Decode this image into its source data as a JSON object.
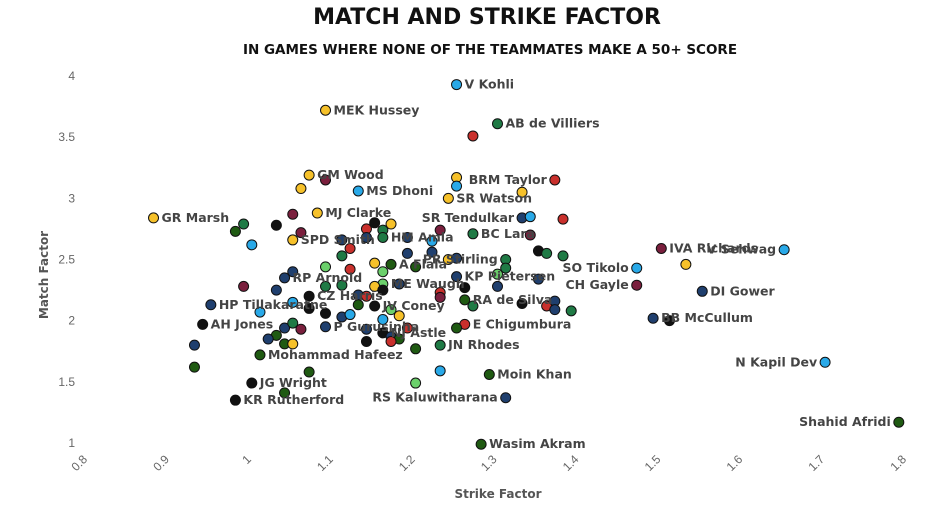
{
  "colors": {
    "black": "#111111",
    "navy": "#1f3f6e",
    "sky": "#29a9e8",
    "green": "#1f7a45",
    "dkgreen": "#1f5a12",
    "yellow": "#f6c12a",
    "red": "#c9302c",
    "purple": "#7a1f3d",
    "lime": "#6bd06b"
  },
  "chart_data": {
    "type": "scatter",
    "title": "MATCH AND STRIKE FACTOR",
    "subtitle": "IN GAMES WHERE NONE OF THE TEAMMATES MAKE A 50+ SCORE",
    "xlabel": "Strike Factor",
    "ylabel": "Match Factor",
    "xlim": [
      0.8,
      1.8
    ],
    "ylim": [
      1,
      4
    ],
    "xticks": [
      "0.8",
      "0.9",
      "1",
      "1.1",
      "1.2",
      "1.3",
      "1.4",
      "1.5",
      "1.6",
      "1.7",
      "1.8"
    ],
    "yticks": [
      "1",
      "1.5",
      "2",
      "2.5",
      "3",
      "3.5",
      "4"
    ],
    "grid": false,
    "points": [
      {
        "label": "V Kohli",
        "x": 1.25,
        "y": 3.93,
        "color": "sky"
      },
      {
        "label": "MEK Hussey",
        "x": 1.09,
        "y": 3.72,
        "color": "yellow"
      },
      {
        "label": "AB de Villiers",
        "x": 1.3,
        "y": 3.61,
        "color": "green"
      },
      {
        "label": "",
        "x": 1.27,
        "y": 3.51,
        "color": "red"
      },
      {
        "label": "GM Wood",
        "x": 1.07,
        "y": 3.19,
        "color": "yellow"
      },
      {
        "label": "",
        "x": 1.09,
        "y": 3.15,
        "color": "purple"
      },
      {
        "label": "BRM Taylor",
        "x": 1.37,
        "y": 3.15,
        "color": "red"
      },
      {
        "label": "",
        "x": 1.25,
        "y": 3.17,
        "color": "yellow"
      },
      {
        "label": "MS Dhoni",
        "x": 1.13,
        "y": 3.06,
        "color": "sky"
      },
      {
        "label": "",
        "x": 1.06,
        "y": 3.08,
        "color": "yellow"
      },
      {
        "label": "",
        "x": 1.25,
        "y": 3.1,
        "color": "sky"
      },
      {
        "label": "SR Watson",
        "x": 1.24,
        "y": 3.0,
        "color": "yellow"
      },
      {
        "label": "",
        "x": 1.33,
        "y": 3.05,
        "color": "yellow"
      },
      {
        "label": "MJ Clarke",
        "x": 1.08,
        "y": 2.88,
        "color": "yellow"
      },
      {
        "label": "GR Marsh",
        "x": 0.88,
        "y": 2.84,
        "color": "yellow"
      },
      {
        "label": "",
        "x": 0.99,
        "y": 2.79,
        "color": "green"
      },
      {
        "label": "",
        "x": 0.98,
        "y": 2.73,
        "color": "dkgreen"
      },
      {
        "label": "",
        "x": 1.03,
        "y": 2.78,
        "color": "black"
      },
      {
        "label": "",
        "x": 1.05,
        "y": 2.87,
        "color": "purple"
      },
      {
        "label": "SR Tendulkar",
        "x": 1.33,
        "y": 2.84,
        "color": "navy"
      },
      {
        "label": "",
        "x": 1.34,
        "y": 2.85,
        "color": "sky"
      },
      {
        "label": "",
        "x": 1.38,
        "y": 2.83,
        "color": "red"
      },
      {
        "label": "",
        "x": 1.15,
        "y": 2.8,
        "color": "black"
      },
      {
        "label": "",
        "x": 1.17,
        "y": 2.79,
        "color": "yellow"
      },
      {
        "label": "",
        "x": 1.14,
        "y": 2.75,
        "color": "red"
      },
      {
        "label": "",
        "x": 1.16,
        "y": 2.74,
        "color": "green"
      },
      {
        "label": "SPD Smith",
        "x": 1.05,
        "y": 2.66,
        "color": "yellow"
      },
      {
        "label": "",
        "x": 1.06,
        "y": 2.72,
        "color": "purple"
      },
      {
        "label": "",
        "x": 1.0,
        "y": 2.62,
        "color": "sky"
      },
      {
        "label": "HM Amla",
        "x": 1.16,
        "y": 2.68,
        "color": "green"
      },
      {
        "label": "",
        "x": 1.11,
        "y": 2.66,
        "color": "navy"
      },
      {
        "label": "",
        "x": 1.14,
        "y": 2.68,
        "color": "navy"
      },
      {
        "label": "",
        "x": 1.19,
        "y": 2.68,
        "color": "navy"
      },
      {
        "label": "",
        "x": 1.22,
        "y": 2.65,
        "color": "sky"
      },
      {
        "label": "",
        "x": 1.23,
        "y": 2.74,
        "color": "purple"
      },
      {
        "label": "BC Lara",
        "x": 1.27,
        "y": 2.71,
        "color": "green"
      },
      {
        "label": "",
        "x": 1.34,
        "y": 2.7,
        "color": "purple"
      },
      {
        "label": "IVA Richards",
        "x": 1.5,
        "y": 2.59,
        "color": "purple"
      },
      {
        "label": "V Sehwag",
        "x": 1.65,
        "y": 2.58,
        "color": "sky"
      },
      {
        "label": "",
        "x": 1.12,
        "y": 2.59,
        "color": "red"
      },
      {
        "label": "",
        "x": 1.11,
        "y": 2.53,
        "color": "green"
      },
      {
        "label": "",
        "x": 1.19,
        "y": 2.55,
        "color": "navy"
      },
      {
        "label": "",
        "x": 1.22,
        "y": 2.56,
        "color": "navy"
      },
      {
        "label": "",
        "x": 1.35,
        "y": 2.57,
        "color": "black"
      },
      {
        "label": "",
        "x": 1.36,
        "y": 2.55,
        "color": "green"
      },
      {
        "label": "",
        "x": 1.38,
        "y": 2.53,
        "color": "green"
      },
      {
        "label": "PR Stirling",
        "x": 1.31,
        "y": 2.5,
        "color": "green"
      },
      {
        "label": "A Flala",
        "x": 1.17,
        "y": 2.46,
        "color": "dkgreen"
      },
      {
        "label": "",
        "x": 1.2,
        "y": 2.44,
        "color": "dkgreen"
      },
      {
        "label": "",
        "x": 1.15,
        "y": 2.47,
        "color": "yellow"
      },
      {
        "label": "",
        "x": 1.24,
        "y": 2.5,
        "color": "yellow"
      },
      {
        "label": "",
        "x": 1.25,
        "y": 2.51,
        "color": "navy"
      },
      {
        "label": "SO Tikolo",
        "x": 1.47,
        "y": 2.43,
        "color": "sky"
      },
      {
        "label": "",
        "x": 1.53,
        "y": 2.46,
        "color": "yellow"
      },
      {
        "label": "RP Arnold",
        "x": 1.04,
        "y": 2.35,
        "color": "navy"
      },
      {
        "label": "",
        "x": 1.05,
        "y": 2.4,
        "color": "navy"
      },
      {
        "label": "",
        "x": 1.09,
        "y": 2.44,
        "color": "lime"
      },
      {
        "label": "",
        "x": 1.12,
        "y": 2.42,
        "color": "red"
      },
      {
        "label": "",
        "x": 1.16,
        "y": 2.4,
        "color": "lime"
      },
      {
        "label": "",
        "x": 1.31,
        "y": 2.43,
        "color": "green"
      },
      {
        "label": "KP Pietersen",
        "x": 1.25,
        "y": 2.36,
        "color": "navy"
      },
      {
        "label": "",
        "x": 1.3,
        "y": 2.38,
        "color": "lime"
      },
      {
        "label": "",
        "x": 1.35,
        "y": 2.34,
        "color": "navy"
      },
      {
        "label": "CH Gayle",
        "x": 1.47,
        "y": 2.29,
        "color": "purple"
      },
      {
        "label": "DI Gower",
        "x": 1.55,
        "y": 2.24,
        "color": "navy"
      },
      {
        "label": "ME Waugh",
        "x": 1.16,
        "y": 2.3,
        "color": "lime"
      },
      {
        "label": "",
        "x": 1.18,
        "y": 2.3,
        "color": "navy"
      },
      {
        "label": "",
        "x": 1.09,
        "y": 2.28,
        "color": "green"
      },
      {
        "label": "",
        "x": 1.11,
        "y": 2.29,
        "color": "green"
      },
      {
        "label": "",
        "x": 1.15,
        "y": 2.28,
        "color": "yellow"
      },
      {
        "label": "",
        "x": 0.99,
        "y": 2.28,
        "color": "purple"
      },
      {
        "label": "",
        "x": 1.03,
        "y": 2.25,
        "color": "navy"
      },
      {
        "label": "",
        "x": 1.16,
        "y": 2.25,
        "color": "black"
      },
      {
        "label": "",
        "x": 1.26,
        "y": 2.27,
        "color": "black"
      },
      {
        "label": "",
        "x": 1.3,
        "y": 2.28,
        "color": "navy"
      },
      {
        "label": "CZ Harris",
        "x": 1.07,
        "y": 2.2,
        "color": "black"
      },
      {
        "label": "",
        "x": 1.13,
        "y": 2.21,
        "color": "navy"
      },
      {
        "label": "",
        "x": 1.14,
        "y": 2.2,
        "color": "red"
      },
      {
        "label": "",
        "x": 1.23,
        "y": 2.23,
        "color": "red"
      },
      {
        "label": "",
        "x": 1.23,
        "y": 2.19,
        "color": "purple"
      },
      {
        "label": "RA de Silva",
        "x": 1.26,
        "y": 2.17,
        "color": "dkgreen"
      },
      {
        "label": "",
        "x": 1.33,
        "y": 2.14,
        "color": "black"
      },
      {
        "label": "",
        "x": 1.36,
        "y": 2.12,
        "color": "red"
      },
      {
        "label": "",
        "x": 1.37,
        "y": 2.16,
        "color": "navy"
      },
      {
        "label": "",
        "x": 1.37,
        "y": 2.09,
        "color": "navy"
      },
      {
        "label": "",
        "x": 1.27,
        "y": 2.12,
        "color": "green"
      },
      {
        "label": "HP Tillakaratne",
        "x": 0.95,
        "y": 2.13,
        "color": "navy"
      },
      {
        "label": "",
        "x": 1.05,
        "y": 2.15,
        "color": "sky"
      },
      {
        "label": "",
        "x": 1.01,
        "y": 2.07,
        "color": "sky"
      },
      {
        "label": "",
        "x": 1.07,
        "y": 2.1,
        "color": "black"
      },
      {
        "label": "",
        "x": 1.09,
        "y": 2.06,
        "color": "black"
      },
      {
        "label": "JV Coney",
        "x": 1.15,
        "y": 2.12,
        "color": "black"
      },
      {
        "label": "",
        "x": 1.13,
        "y": 2.13,
        "color": "dkgreen"
      },
      {
        "label": "",
        "x": 1.17,
        "y": 2.09,
        "color": "lime"
      },
      {
        "label": "",
        "x": 1.18,
        "y": 2.04,
        "color": "yellow"
      },
      {
        "label": "",
        "x": 1.11,
        "y": 2.03,
        "color": "navy"
      },
      {
        "label": "",
        "x": 1.12,
        "y": 2.05,
        "color": "sky"
      },
      {
        "label": "BB McCullum",
        "x": 1.49,
        "y": 2.02,
        "color": "navy"
      },
      {
        "label": "",
        "x": 1.51,
        "y": 2.0,
        "color": "black"
      },
      {
        "label": "",
        "x": 1.39,
        "y": 2.08,
        "color": "green"
      },
      {
        "label": "AH Jones",
        "x": 0.94,
        "y": 1.97,
        "color": "black"
      },
      {
        "label": "",
        "x": 1.04,
        "y": 1.94,
        "color": "navy"
      },
      {
        "label": "",
        "x": 1.05,
        "y": 1.98,
        "color": "green"
      },
      {
        "label": "",
        "x": 1.06,
        "y": 1.93,
        "color": "purple"
      },
      {
        "label": "",
        "x": 1.03,
        "y": 1.88,
        "color": "dkgreen"
      },
      {
        "label": "",
        "x": 1.02,
        "y": 1.85,
        "color": "navy"
      },
      {
        "label": "",
        "x": 1.04,
        "y": 1.81,
        "color": "dkgreen"
      },
      {
        "label": "",
        "x": 1.05,
        "y": 1.81,
        "color": "yellow"
      },
      {
        "label": "P Gurusinha",
        "x": 1.09,
        "y": 1.95,
        "color": "navy"
      },
      {
        "label": "",
        "x": 1.14,
        "y": 1.93,
        "color": "navy"
      },
      {
        "label": "",
        "x": 1.16,
        "y": 2.01,
        "color": "sky"
      },
      {
        "label": "",
        "x": 1.19,
        "y": 1.94,
        "color": "red"
      },
      {
        "label": "NJ Astle",
        "x": 1.16,
        "y": 1.9,
        "color": "black"
      },
      {
        "label": "",
        "x": 1.17,
        "y": 1.87,
        "color": "navy"
      },
      {
        "label": "",
        "x": 1.18,
        "y": 1.85,
        "color": "dkgreen"
      },
      {
        "label": "",
        "x": 1.17,
        "y": 1.83,
        "color": "red"
      },
      {
        "label": "",
        "x": 1.14,
        "y": 1.83,
        "color": "black"
      },
      {
        "label": "E Chigumbura",
        "x": 1.26,
        "y": 1.97,
        "color": "red"
      },
      {
        "label": "",
        "x": 1.25,
        "y": 1.94,
        "color": "dkgreen"
      },
      {
        "label": "JN Rhodes",
        "x": 1.23,
        "y": 1.8,
        "color": "green"
      },
      {
        "label": "",
        "x": 1.2,
        "y": 1.77,
        "color": "dkgreen"
      },
      {
        "label": "Mohammad Hafeez",
        "x": 1.01,
        "y": 1.72,
        "color": "dkgreen"
      },
      {
        "label": "",
        "x": 0.93,
        "y": 1.8,
        "color": "navy"
      },
      {
        "label": "N Kapil Dev",
        "x": 1.7,
        "y": 1.66,
        "color": "sky"
      },
      {
        "label": "",
        "x": 0.93,
        "y": 1.62,
        "color": "dkgreen"
      },
      {
        "label": "",
        "x": 1.07,
        "y": 1.58,
        "color": "dkgreen"
      },
      {
        "label": "",
        "x": 1.23,
        "y": 1.59,
        "color": "sky"
      },
      {
        "label": "Moin Khan",
        "x": 1.29,
        "y": 1.56,
        "color": "dkgreen"
      },
      {
        "label": "JG Wright",
        "x": 1.0,
        "y": 1.49,
        "color": "black"
      },
      {
        "label": "",
        "x": 1.2,
        "y": 1.49,
        "color": "lime"
      },
      {
        "label": "KR Rutherford",
        "x": 0.98,
        "y": 1.35,
        "color": "black"
      },
      {
        "label": "",
        "x": 1.04,
        "y": 1.41,
        "color": "dkgreen"
      },
      {
        "label": "RS Kaluwitharana",
        "x": 1.31,
        "y": 1.37,
        "color": "navy"
      },
      {
        "label": "Shahid Afridi",
        "x": 1.79,
        "y": 1.17,
        "color": "dkgreen"
      },
      {
        "label": "Wasim Akram",
        "x": 1.28,
        "y": 0.99,
        "color": "dkgreen"
      }
    ]
  }
}
